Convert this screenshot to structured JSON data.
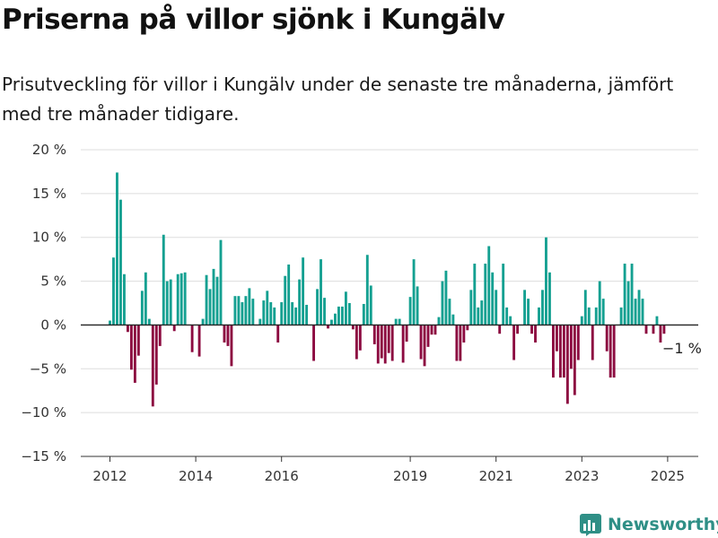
{
  "title": "Priserna på villor sjönk i Kungälv",
  "subtitle": "Prisutveckling för villor i Kungälv under de senaste tre månaderna, jämfört med tre månader tidigare.",
  "brand": {
    "name": "Newsworthy",
    "icon": "newsworthy-logo-icon"
  },
  "colors": {
    "positive": "#14a091",
    "negative": "#8c0a40",
    "grid": "#dddddd",
    "zero_line": "#222222"
  },
  "chart_data": {
    "type": "bar",
    "ylim": [
      -15,
      20
    ],
    "y_ticks": [
      {
        "value": 20,
        "label": "20 %"
      },
      {
        "value": 15,
        "label": "15 %"
      },
      {
        "value": 10,
        "label": "10 %"
      },
      {
        "value": 5,
        "label": "5 %"
      },
      {
        "value": 0,
        "label": "0 %"
      },
      {
        "value": -5,
        "label": "−5 %"
      },
      {
        "value": -10,
        "label": "−10 %"
      },
      {
        "value": -15,
        "label": "−15 %"
      }
    ],
    "x_ticks": [
      {
        "year": 2012,
        "label": "2012"
      },
      {
        "year": 2014,
        "label": "2014"
      },
      {
        "year": 2016,
        "label": "2016"
      },
      {
        "year": 2019,
        "label": "2019"
      },
      {
        "year": 2021,
        "label": "2021"
      },
      {
        "year": 2023,
        "label": "2023"
      },
      {
        "year": 2025,
        "label": "2025"
      }
    ],
    "start": "2012-01",
    "values": [
      0.5,
      7.7,
      17.4,
      14.3,
      5.8,
      -0.8,
      -5.1,
      -6.6,
      -3.5,
      3.9,
      6.0,
      0.7,
      -9.3,
      -6.8,
      -2.4,
      10.3,
      5.0,
      5.2,
      -0.7,
      5.8,
      5.9,
      6.0,
      null,
      -3.1,
      null,
      -3.6,
      0.7,
      5.7,
      4.1,
      6.4,
      5.5,
      9.7,
      -2.0,
      -2.4,
      -4.7,
      3.3,
      3.3,
      2.6,
      3.3,
      4.2,
      3.0,
      null,
      0.7,
      2.8,
      3.9,
      2.6,
      2.0,
      -2.0,
      2.6,
      5.6,
      6.9,
      2.6,
      2.0,
      5.2,
      7.7,
      2.3,
      null,
      -4.1,
      4.1,
      7.5,
      3.1,
      -0.4,
      0.6,
      1.3,
      2.1,
      2.1,
      3.8,
      2.5,
      -0.5,
      -3.9,
      -2.9,
      2.4,
      8.0,
      4.5,
      -2.2,
      -4.4,
      -3.8,
      -4.4,
      -3.2,
      -4.1,
      0.7,
      0.7,
      -4.3,
      -1.9,
      3.2,
      7.5,
      4.4,
      -3.9,
      -4.7,
      -2.5,
      -1.1,
      -1.1,
      0.9,
      5.0,
      6.2,
      3.0,
      1.2,
      -4.1,
      -4.1,
      -2.0,
      -0.6,
      4.0,
      7.0,
      2.0,
      2.8,
      7.0,
      9.0,
      6.0,
      4.0,
      -1.0,
      7.0,
      2.0,
      1.0,
      -4.0,
      -1.0,
      null,
      4.0,
      3.0,
      -1.0,
      -2.0,
      2.0,
      4.0,
      10.0,
      6.0,
      -6.0,
      -3.0,
      -6.0,
      -6.0,
      -9.0,
      -5.0,
      -8.0,
      -4.0,
      1.0,
      4.0,
      2.0,
      -4.0,
      2.0,
      5.0,
      3.0,
      -3.0,
      -6.0,
      -6.0,
      null,
      2.0,
      7.0,
      5.0,
      7.0,
      3.0,
      4.0,
      3.0,
      -1.0,
      null,
      -1.0,
      1.0,
      -2.0,
      -1.0
    ],
    "annotation": {
      "text": "−1 %"
    }
  }
}
